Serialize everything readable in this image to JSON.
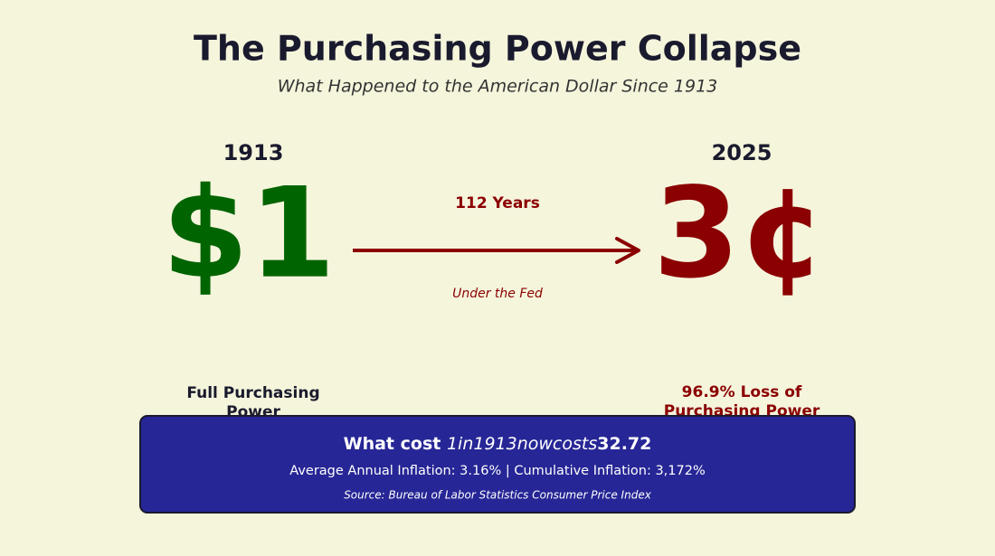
{
  "header": {
    "title": "The Purchasing Power Collapse",
    "subtitle": "What Happened to the American Dollar Since 1913"
  },
  "left": {
    "year": "1913",
    "amount": "$1",
    "caption": [
      "Full Purchasing",
      "Power"
    ]
  },
  "middle": {
    "label": "112 Years",
    "sublabel": "Under the Fed"
  },
  "right": {
    "year": "2025",
    "amount": "3¢",
    "caption": [
      "96.9% Loss of",
      "Purchasing Power"
    ]
  },
  "summary": {
    "headline": [
      "What cost ",
      "1in1913nowcosts",
      "32.72"
    ],
    "stats": "Average Annual Inflation: 3.16% | Cumulative Inflation: 3,172%",
    "source": "Source: Bureau of Labor Statistics Consumer Price Index"
  }
}
